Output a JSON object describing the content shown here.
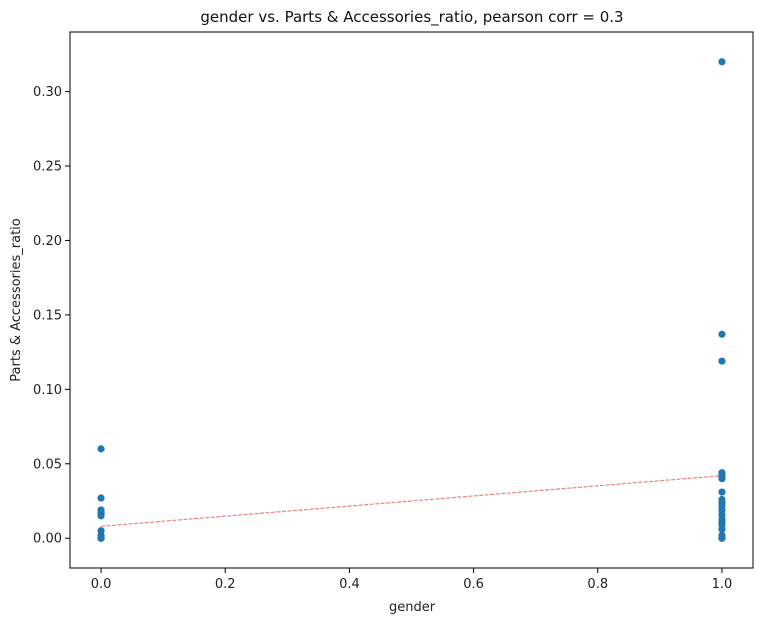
{
  "chart_data": {
    "type": "scatter",
    "title": "gender vs. Parts & Accessories_ratio, pearson corr = 0.3",
    "xlabel": "gender",
    "ylabel": "Parts & Accessories_ratio",
    "xlim": [
      -0.05,
      1.05
    ],
    "ylim": [
      -0.02,
      0.34
    ],
    "xticks": [
      0.0,
      0.2,
      0.4,
      0.6,
      0.8,
      1.0
    ],
    "xtick_labels": [
      "0.0",
      "0.2",
      "0.4",
      "0.6",
      "0.8",
      "1.0"
    ],
    "yticks": [
      0.0,
      0.05,
      0.1,
      0.15,
      0.2,
      0.25,
      0.3
    ],
    "ytick_labels": [
      "0.00",
      "0.05",
      "0.10",
      "0.15",
      "0.20",
      "0.25",
      "0.30"
    ],
    "grid": false,
    "points": {
      "x": [
        0,
        0,
        0,
        0,
        0,
        0,
        0,
        0,
        0,
        0,
        1,
        1,
        1,
        1,
        1,
        1,
        1,
        1,
        1,
        1,
        1,
        1,
        1,
        1,
        1,
        1,
        1,
        1,
        1
      ],
      "y": [
        0.06,
        0.027,
        0.019,
        0.017,
        0.015,
        0.005,
        0.002,
        0.0,
        0.0,
        0.0,
        0.32,
        0.137,
        0.119,
        0.044,
        0.042,
        0.04,
        0.031,
        0.026,
        0.024,
        0.022,
        0.019,
        0.016,
        0.013,
        0.011,
        0.009,
        0.006,
        0.002,
        0.0,
        0.0
      ]
    },
    "trendline": {
      "x": [
        0,
        1
      ],
      "y": [
        0.008,
        0.042
      ]
    },
    "colors": {
      "points": "#1f77b4",
      "trendline": "#f08080",
      "axes": "#000000"
    }
  }
}
